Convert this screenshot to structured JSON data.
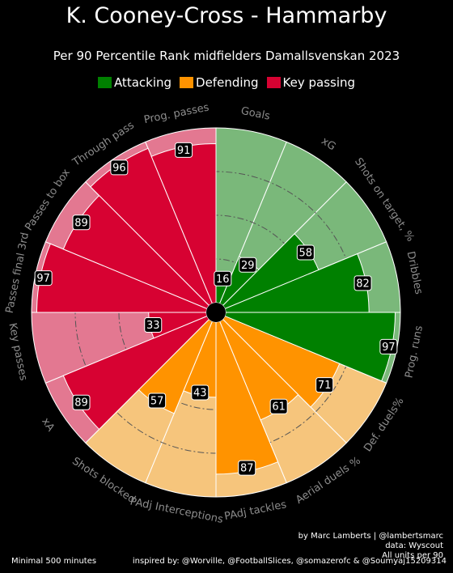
{
  "title": "K. Cooney-Cross - Hammarby",
  "subtitle": "Per 90 Percentile Rank midfielders Damallsvenskan 2023",
  "legend": [
    {
      "label": "Attacking",
      "color": "#008000"
    },
    {
      "label": "Defending",
      "color": "#ff9300"
    },
    {
      "label": "Key passing",
      "color": "#d70232"
    }
  ],
  "colors": {
    "attacking": "#008000",
    "attacking_bg": "#7ab87a",
    "defending": "#ff9300",
    "defending_bg": "#f6c57c",
    "passing": "#d70232",
    "passing_bg": "#e37891",
    "label": "#8c8c8c"
  },
  "chart_data": {
    "type": "radial_bar",
    "scale": [
      0,
      100
    ],
    "metrics": [
      {
        "label": "Goals",
        "value": 16,
        "group": "attacking"
      },
      {
        "label": "xG",
        "value": 29,
        "group": "attacking"
      },
      {
        "label": "Shots on target, %",
        "value": 58,
        "group": "attacking"
      },
      {
        "label": "Dribbles",
        "value": 82,
        "group": "attacking"
      },
      {
        "label": "Prog. runs",
        "value": 97,
        "group": "attacking"
      },
      {
        "label": "Def. duels%",
        "value": 71,
        "group": "defending"
      },
      {
        "label": "Aerial duels %",
        "value": 61,
        "group": "defending"
      },
      {
        "label": "PAdj tackles",
        "value": 87,
        "group": "defending"
      },
      {
        "label": "PAdj Interceptions",
        "value": 43,
        "group": "defending"
      },
      {
        "label": "Shots blocked",
        "value": 57,
        "group": "defending"
      },
      {
        "label": "xA",
        "value": 89,
        "group": "passing"
      },
      {
        "label": "Key passes",
        "value": 33,
        "group": "passing"
      },
      {
        "label": "Passes final 3rd",
        "value": 97,
        "group": "passing"
      },
      {
        "label": "Passes to box",
        "value": 89,
        "group": "passing"
      },
      {
        "label": "Through pass",
        "value": 96,
        "group": "passing"
      },
      {
        "label": "Prog. passes",
        "value": 91,
        "group": "passing"
      }
    ]
  },
  "footer": {
    "credit": "by Marc Lamberts | @lambertsmarc",
    "data_source": "data: Wyscout",
    "units": "All units per 90",
    "minutes": "Minimal 500 minutes",
    "inspired": "inspired by: @Worville, @FootballSlices, @somazerofc & @Soumyaj15209314"
  }
}
